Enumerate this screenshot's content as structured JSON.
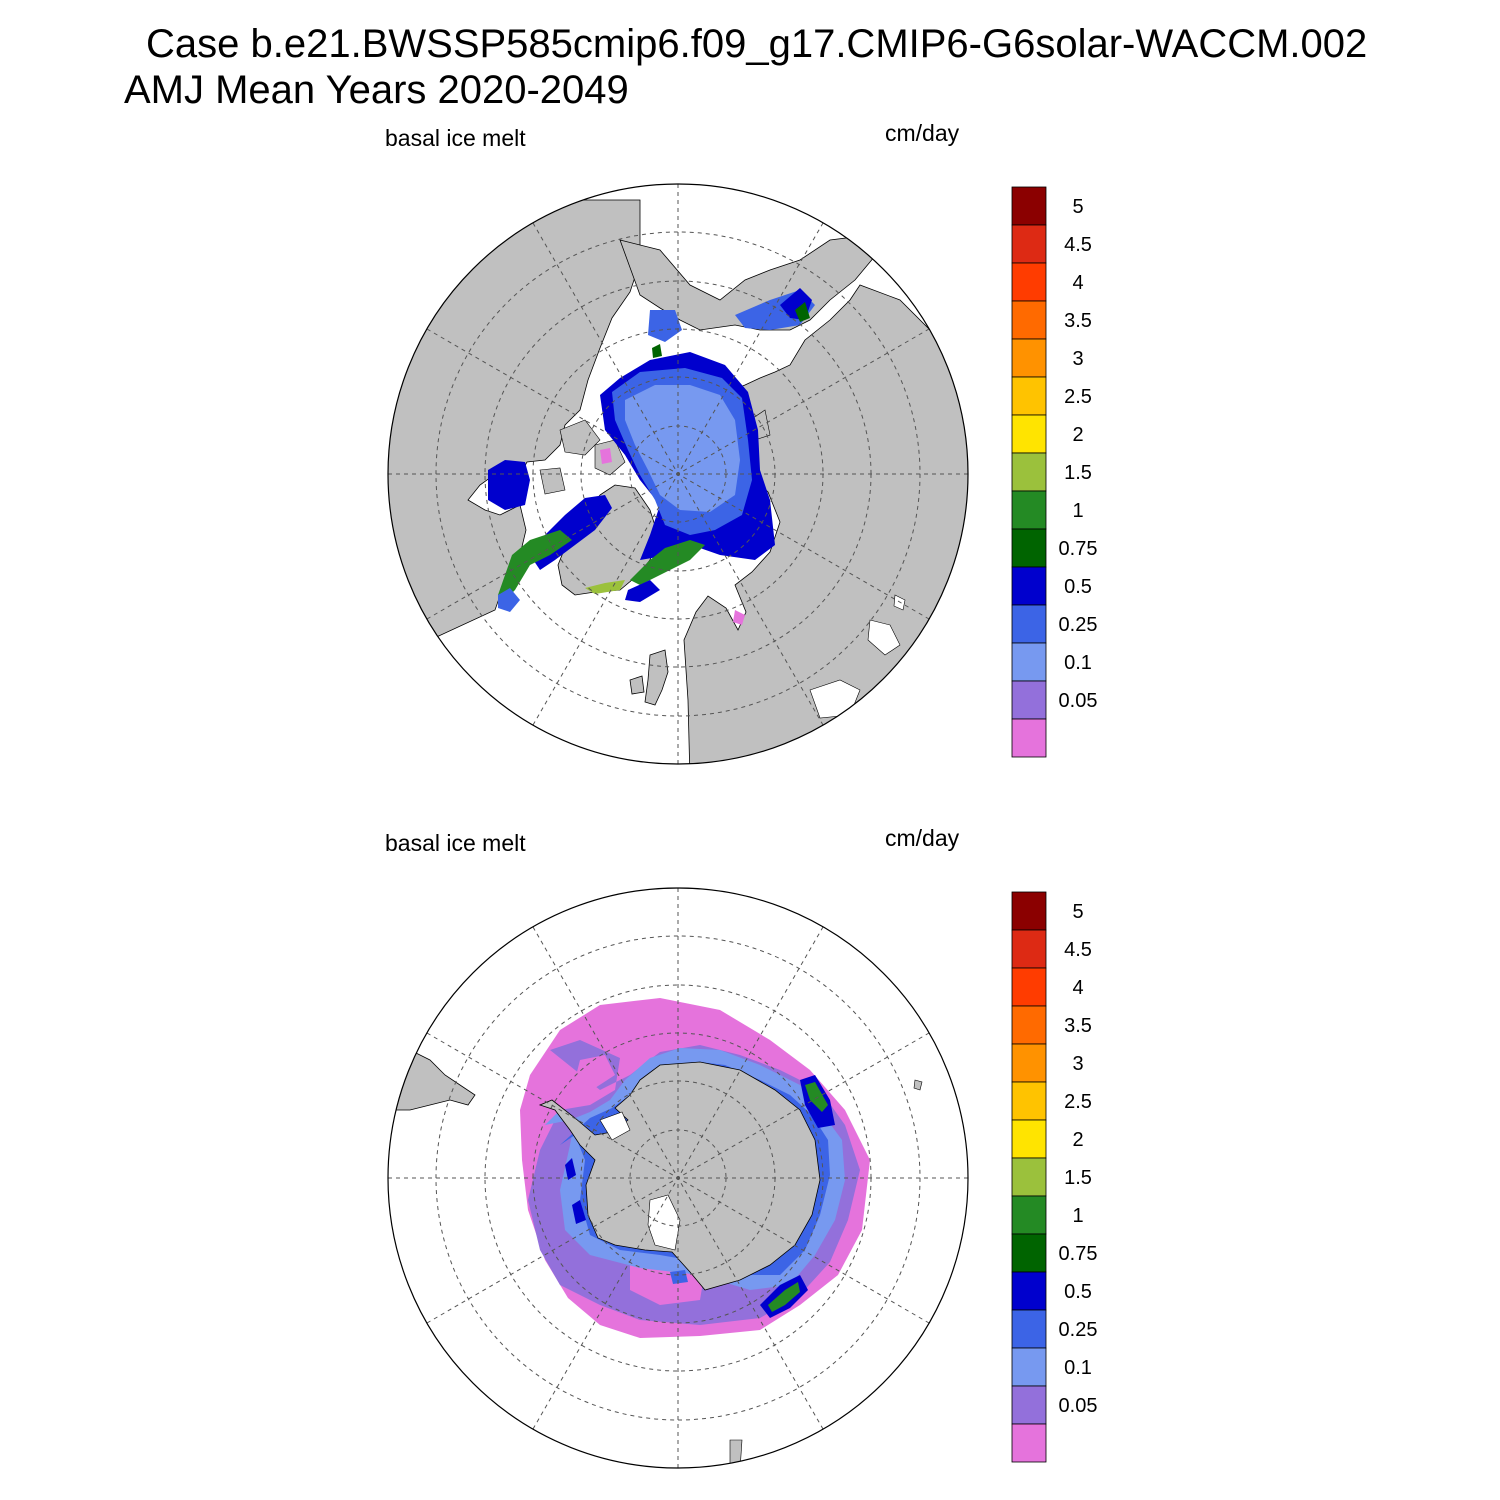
{
  "header": {
    "case_title": "Case b.e21.BWSSP585cmip6.f09_g17.CMIP6-G6solar-WACCM.002",
    "period_title": "AMJ Mean   Years 2020-2049"
  },
  "panels": [
    {
      "id": "north",
      "hemisphere": "north",
      "variable_label": "basal ice melt",
      "units_label": "cm/day"
    },
    {
      "id": "south",
      "hemisphere": "south",
      "variable_label": "basal ice melt",
      "units_label": "cm/day"
    }
  ],
  "colorbar": {
    "tick_labels": [
      "5",
      "4.5",
      "4",
      "3.5",
      "3",
      "2.5",
      "2",
      "1.5",
      "1",
      "0.75",
      "0.5",
      "0.25",
      "0.1",
      "0.05"
    ],
    "colors_top_to_bottom": [
      "#8b0000",
      "#dd2a14",
      "#ff3c00",
      "#ff6a00",
      "#ff9200",
      "#ffc300",
      "#ffe400",
      "#9bc13c",
      "#248a24",
      "#006400",
      "#0000cd",
      "#3c64e6",
      "#7799f0",
      "#9370db",
      "#e573dc"
    ]
  },
  "map_colors": {
    "land": "#c0c0c0",
    "ocean": "#ffffff",
    "grid": "#555555"
  }
}
